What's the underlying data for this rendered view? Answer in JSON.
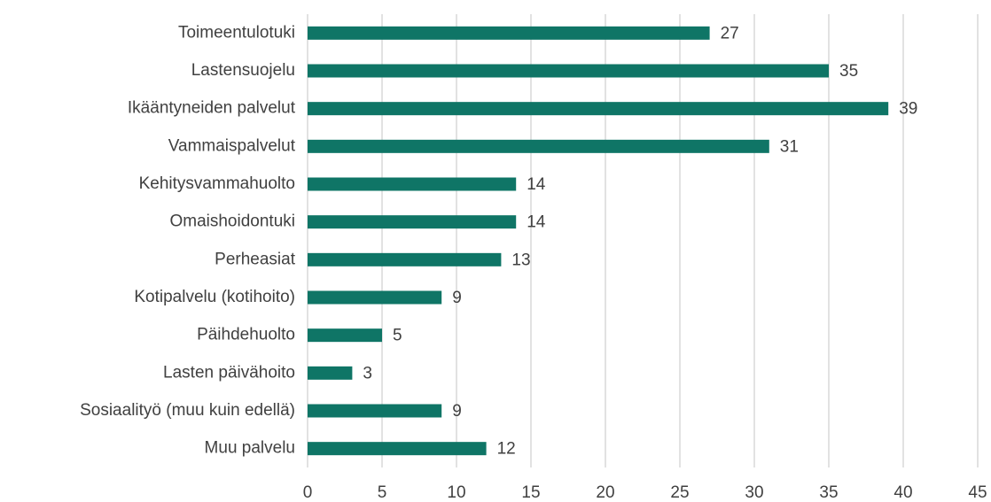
{
  "chart_data": {
    "type": "bar",
    "orientation": "horizontal",
    "categories": [
      "Toimeentulotuki",
      "Lastensuojelu",
      "Ikääntyneiden palvelut",
      "Vammaispalvelut",
      "Kehitysvammahuolto",
      "Omaishoidontuki",
      "Perheasiat",
      "Kotipalvelu (kotihoito)",
      "Päihdehuolto",
      "Lasten päivähoito",
      "Sosiaalityö (muu kuin edellä)",
      "Muu palvelu"
    ],
    "values": [
      27,
      35,
      39,
      31,
      14,
      14,
      13,
      9,
      5,
      3,
      9,
      12
    ],
    "color": "#0f7566",
    "xlim": [
      0,
      45
    ],
    "xticks": [
      0,
      5,
      10,
      15,
      20,
      25,
      30,
      35,
      40,
      45
    ],
    "grid": true
  }
}
